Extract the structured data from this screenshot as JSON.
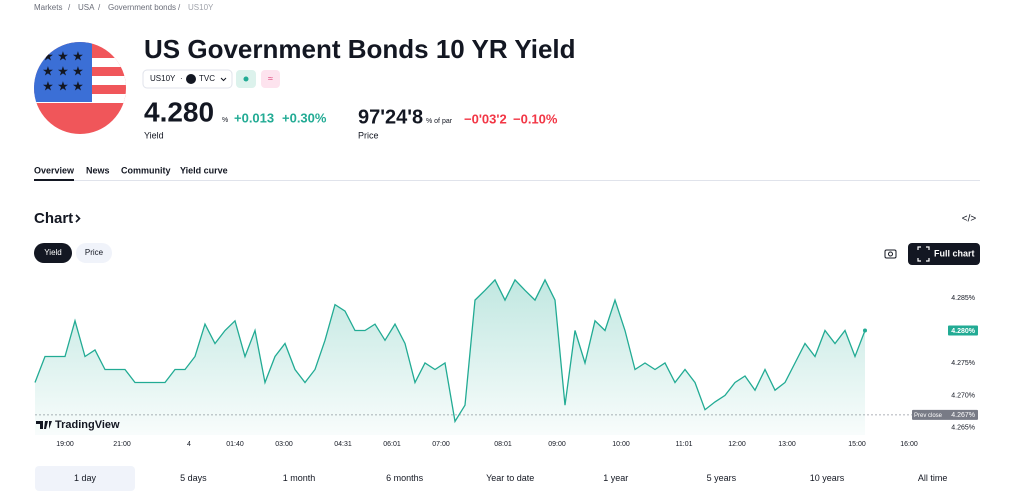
{
  "breadcrumbs": [
    "Markets",
    "USA",
    "Government bonds",
    "US10Y"
  ],
  "header": {
    "title": "US Government Bonds 10 YR Yield",
    "symbol": "US10Y",
    "source": "TVC",
    "yield": {
      "value": "4.280",
      "unit": "%",
      "change": "+0.013",
      "change_pct": "+0.30%",
      "label": "Yield"
    },
    "price": {
      "value": "97'24'8",
      "unit": "% of par",
      "change": "−0'03'2",
      "change_pct": "−0.10%",
      "label": "Price"
    }
  },
  "tabs": [
    "Overview",
    "News",
    "Community",
    "Yield curve"
  ],
  "section_title": "Chart",
  "toggle": [
    "Yield",
    "Price"
  ],
  "full_chart": "Full chart",
  "ranges": [
    "1 day",
    "5 days",
    "1 month",
    "6 months",
    "Year to date",
    "1 year",
    "5 years",
    "10 years",
    "All time"
  ],
  "chart_data": {
    "type": "line",
    "color": "#22ab94",
    "watermark": "TradingView",
    "values": [
      4.272,
      4.276,
      4.276,
      4.276,
      4.2815,
      4.276,
      4.277,
      4.274,
      4.274,
      4.274,
      4.272,
      4.272,
      4.272,
      4.272,
      4.274,
      4.274,
      4.276,
      4.281,
      4.278,
      4.28,
      4.2815,
      4.276,
      4.28,
      4.272,
      4.276,
      4.278,
      4.274,
      4.272,
      4.274,
      4.2785,
      4.284,
      4.283,
      4.28,
      4.28,
      4.281,
      4.2785,
      4.281,
      4.278,
      4.272,
      4.275,
      4.274,
      4.275,
      4.266,
      4.2685,
      4.2847,
      4.2862,
      4.2878,
      4.2847,
      4.2878,
      4.2862,
      4.2847,
      4.2878,
      4.2847,
      4.2685,
      4.28,
      4.275,
      4.2815,
      4.28,
      4.2847,
      4.28,
      4.274,
      4.275,
      4.274,
      4.275,
      4.272,
      4.274,
      4.272,
      4.2678,
      4.269,
      4.27,
      4.272,
      4.273,
      4.2708,
      4.274,
      4.2708,
      4.272,
      4.275,
      4.278,
      4.276,
      4.28,
      4.278,
      4.28,
      4.276,
      4.28
    ],
    "last_label": "4.280%",
    "prev_close": {
      "name": "Prev close",
      "value": 4.267,
      "label": "4.267%"
    },
    "ylim": [
      4.2639,
      4.2881
    ],
    "yticks": [
      {
        "value": 4.265,
        "label": "4.265%"
      },
      {
        "value": 4.27,
        "label": "4.270%"
      },
      {
        "value": 4.275,
        "label": "4.275%"
      },
      {
        "value": 4.285,
        "label": "4.285%"
      }
    ],
    "xlim": [
      0,
      91
    ],
    "xticks": [
      {
        "value": 3,
        "label": "19:00"
      },
      {
        "value": 8.7,
        "label": "21:00"
      },
      {
        "value": 15.4,
        "label": "4"
      },
      {
        "value": 20,
        "label": "01:40"
      },
      {
        "value": 24.9,
        "label": "03:00"
      },
      {
        "value": 30.8,
        "label": "04:31"
      },
      {
        "value": 35.7,
        "label": "06:01"
      },
      {
        "value": 40.6,
        "label": "07:00"
      },
      {
        "value": 46.8,
        "label": "08:01"
      },
      {
        "value": 52.2,
        "label": "09:00"
      },
      {
        "value": 58.6,
        "label": "10:00"
      },
      {
        "value": 64.9,
        "label": "11:01"
      },
      {
        "value": 70.2,
        "label": "12:00"
      },
      {
        "value": 75.2,
        "label": "13:00"
      },
      {
        "value": 82.2,
        "label": "15:00"
      },
      {
        "value": 87.4,
        "label": "16:00"
      }
    ]
  }
}
